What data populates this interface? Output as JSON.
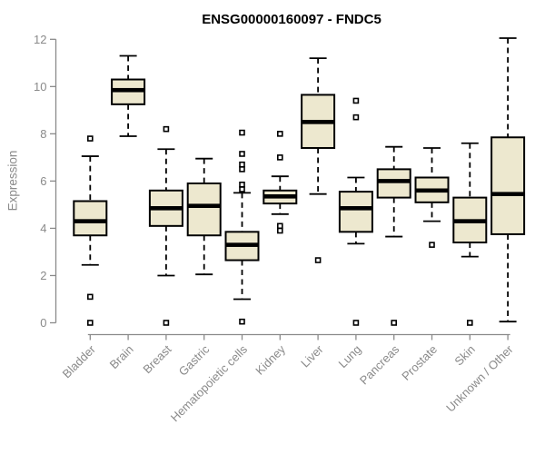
{
  "chart_data": {
    "type": "boxplot",
    "title": "ENSG00000160097 - FNDC5",
    "xlabel": "",
    "ylabel": "Expression",
    "ylim": [
      0,
      12
    ],
    "yticks": [
      0,
      2,
      4,
      6,
      8,
      10,
      12
    ],
    "grid": false,
    "legend": "none",
    "categories": [
      "Bladder",
      "Brain",
      "Breast",
      "Gastric",
      "Hematopoietic cells",
      "Kidney",
      "Liver",
      "Lung",
      "Pancreas",
      "Prostate",
      "Skin",
      "Unknown / Other"
    ],
    "series": [
      {
        "label": "Bladder",
        "whisker_low": 2.45,
        "q1": 3.7,
        "median": 4.3,
        "q3": 5.15,
        "whisker_high": 7.05,
        "outliers": [
          7.8,
          1.1,
          0
        ]
      },
      {
        "label": "Brain",
        "whisker_low": 7.9,
        "q1": 9.25,
        "median": 9.85,
        "q3": 10.3,
        "whisker_high": 11.3,
        "outliers": []
      },
      {
        "label": "Breast",
        "whisker_low": 2.0,
        "q1": 4.1,
        "median": 4.85,
        "q3": 5.6,
        "whisker_high": 7.35,
        "outliers": [
          8.2,
          0
        ]
      },
      {
        "label": "Gastric",
        "whisker_low": 2.05,
        "q1": 3.7,
        "median": 4.95,
        "q3": 5.9,
        "whisker_high": 6.95,
        "outliers": []
      },
      {
        "label": "Hematopoietic cells",
        "whisker_low": 1.0,
        "q1": 2.65,
        "median": 3.3,
        "q3": 3.85,
        "whisker_high": 5.5,
        "outliers": [
          8.05,
          7.15,
          6.7,
          6.5,
          5.85,
          5.65,
          0.05
        ]
      },
      {
        "label": "Kidney",
        "whisker_low": 4.6,
        "q1": 5.05,
        "median": 5.35,
        "q3": 5.6,
        "whisker_high": 6.2,
        "outliers": [
          8.0,
          7.0,
          4.1,
          3.9
        ]
      },
      {
        "label": "Liver",
        "whisker_low": 5.45,
        "q1": 7.4,
        "median": 8.5,
        "q3": 9.65,
        "whisker_high": 11.2,
        "outliers": [
          2.65
        ]
      },
      {
        "label": "Lung",
        "whisker_low": 3.35,
        "q1": 3.85,
        "median": 4.85,
        "q3": 5.55,
        "whisker_high": 6.15,
        "outliers": [
          9.4,
          8.7,
          0
        ]
      },
      {
        "label": "Pancreas",
        "whisker_low": 3.65,
        "q1": 5.3,
        "median": 6.0,
        "q3": 6.5,
        "whisker_high": 7.45,
        "outliers": [
          0
        ]
      },
      {
        "label": "Prostate",
        "whisker_low": 4.3,
        "q1": 5.1,
        "median": 5.6,
        "q3": 6.15,
        "whisker_high": 7.4,
        "outliers": [
          3.3
        ]
      },
      {
        "label": "Skin",
        "whisker_low": 2.8,
        "q1": 3.4,
        "median": 4.3,
        "q3": 5.3,
        "whisker_high": 7.6,
        "outliers": [
          0
        ]
      },
      {
        "label": "Unknown / Other",
        "whisker_low": 0.05,
        "q1": 3.75,
        "median": 5.45,
        "q3": 7.85,
        "whisker_high": 12.05,
        "outliers": []
      }
    ],
    "colors": {
      "box_fill": "#ede8cf",
      "box_stroke": "#000000",
      "median": "#000000",
      "whisker": "#000000",
      "outlier_stroke": "#000000",
      "outlier_fill": "#ffffff",
      "axis": "#8a8a8a",
      "tick_label": "#8a8a8a",
      "title": "#000000",
      "background": "#ffffff"
    }
  }
}
